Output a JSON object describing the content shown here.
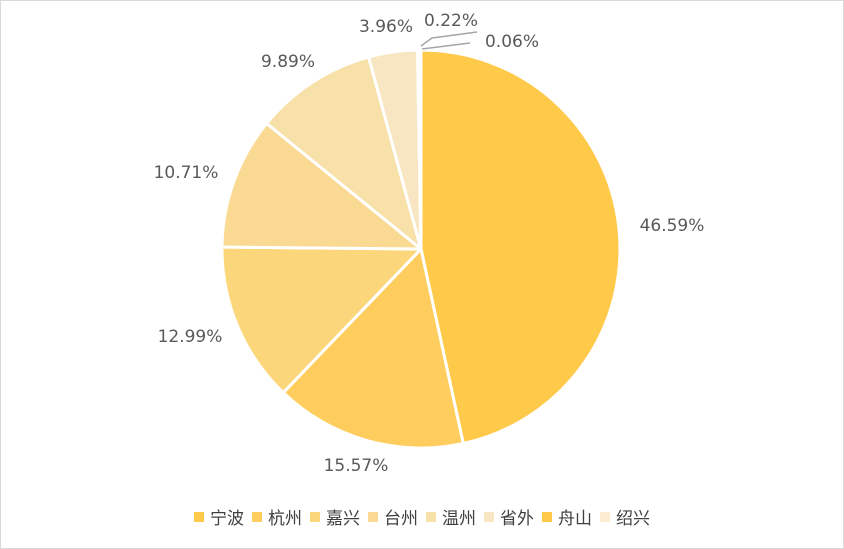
{
  "chart_data": {
    "type": "pie",
    "categories": [
      "宁波",
      "杭州",
      "嘉兴",
      "台州",
      "温州",
      "省外",
      "舟山",
      "绍兴"
    ],
    "values": [
      46.59,
      15.57,
      12.99,
      10.71,
      9.89,
      3.96,
      0.22,
      0.06
    ],
    "data_labels": [
      "46.59%",
      "15.57%",
      "12.99%",
      "10.71%",
      "9.89%",
      "3.96%",
      "0.22%",
      "0.06%"
    ],
    "colors": [
      "#FFC94A",
      "#FECD5E",
      "#FCD67A",
      "#FAD993",
      "#F8E0A9",
      "#F7E6C1",
      "#FFC94A",
      "#FBEBD0"
    ],
    "legend_position": "bottom",
    "start": "top",
    "direction": "clockwise"
  }
}
